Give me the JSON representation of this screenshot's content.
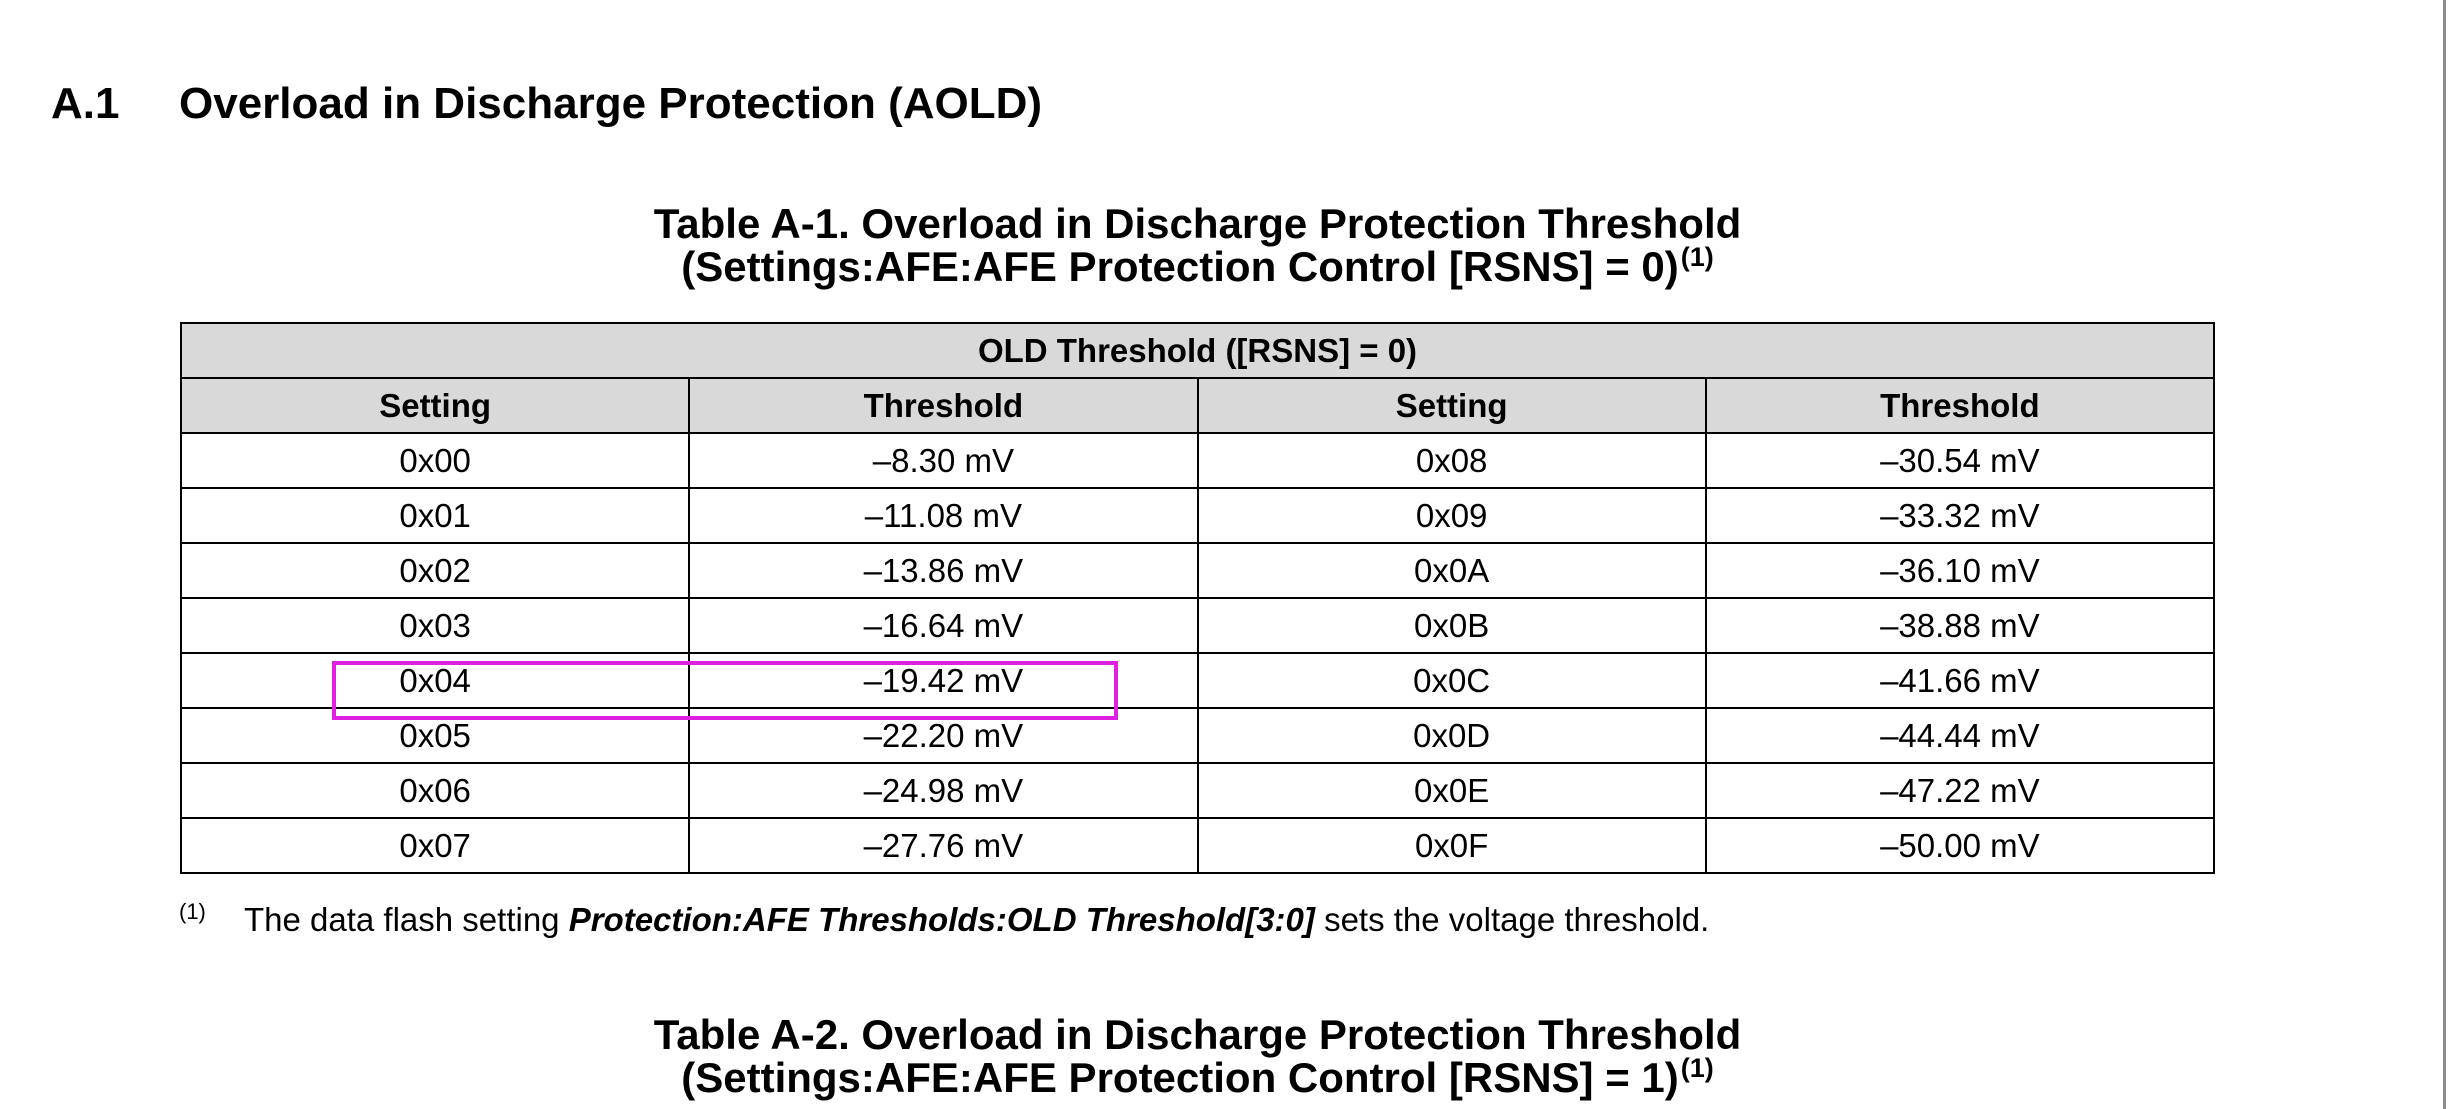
{
  "section": {
    "number": "A.1",
    "title": "Overload in Discharge Protection (AOLD)"
  },
  "table1": {
    "caption_line1": "Table A-1. Overload in Discharge Protection Threshold",
    "caption_line2": "(Settings:AFE:AFE Protection Control [RSNS] = 0)",
    "caption_footnote_mark": "(1)",
    "group_header": "OLD Threshold ([RSNS] = 0)",
    "columns": [
      "Setting",
      "Threshold",
      "Setting",
      "Threshold"
    ],
    "rows": [
      [
        "0x00",
        "–8.30 mV",
        "0x08",
        "–30.54 mV"
      ],
      [
        "0x01",
        "–11.08 mV",
        "0x09",
        "–33.32 mV"
      ],
      [
        "0x02",
        "–13.86 mV",
        "0x0A",
        "–36.10 mV"
      ],
      [
        "0x03",
        "–16.64 mV",
        "0x0B",
        "–38.88 mV"
      ],
      [
        "0x04",
        "–19.42 mV",
        "0x0C",
        "–41.66 mV"
      ],
      [
        "0x05",
        "–22.20 mV",
        "0x0D",
        "–44.44 mV"
      ],
      [
        "0x06",
        "–24.98 mV",
        "0x0E",
        "–47.22 mV"
      ],
      [
        "0x07",
        "–27.76 mV",
        "0x0F",
        "–50.00 mV"
      ]
    ],
    "highlighted_row": "0x04",
    "highlight_color": "#e020e0",
    "header_bg": "#d9d9d9"
  },
  "footnote": {
    "mark": "(1)",
    "text_before": "The data flash setting ",
    "text_emphasis": "Protection:AFE Thresholds:OLD Threshold[3:0]",
    "text_after": " sets the voltage threshold."
  },
  "table2": {
    "caption_line1": "Table A-2. Overload in Discharge Protection Threshold",
    "caption_line2": "(Settings:AFE:AFE Protection Control [RSNS] = 1)",
    "caption_footnote_mark": "(1)"
  }
}
